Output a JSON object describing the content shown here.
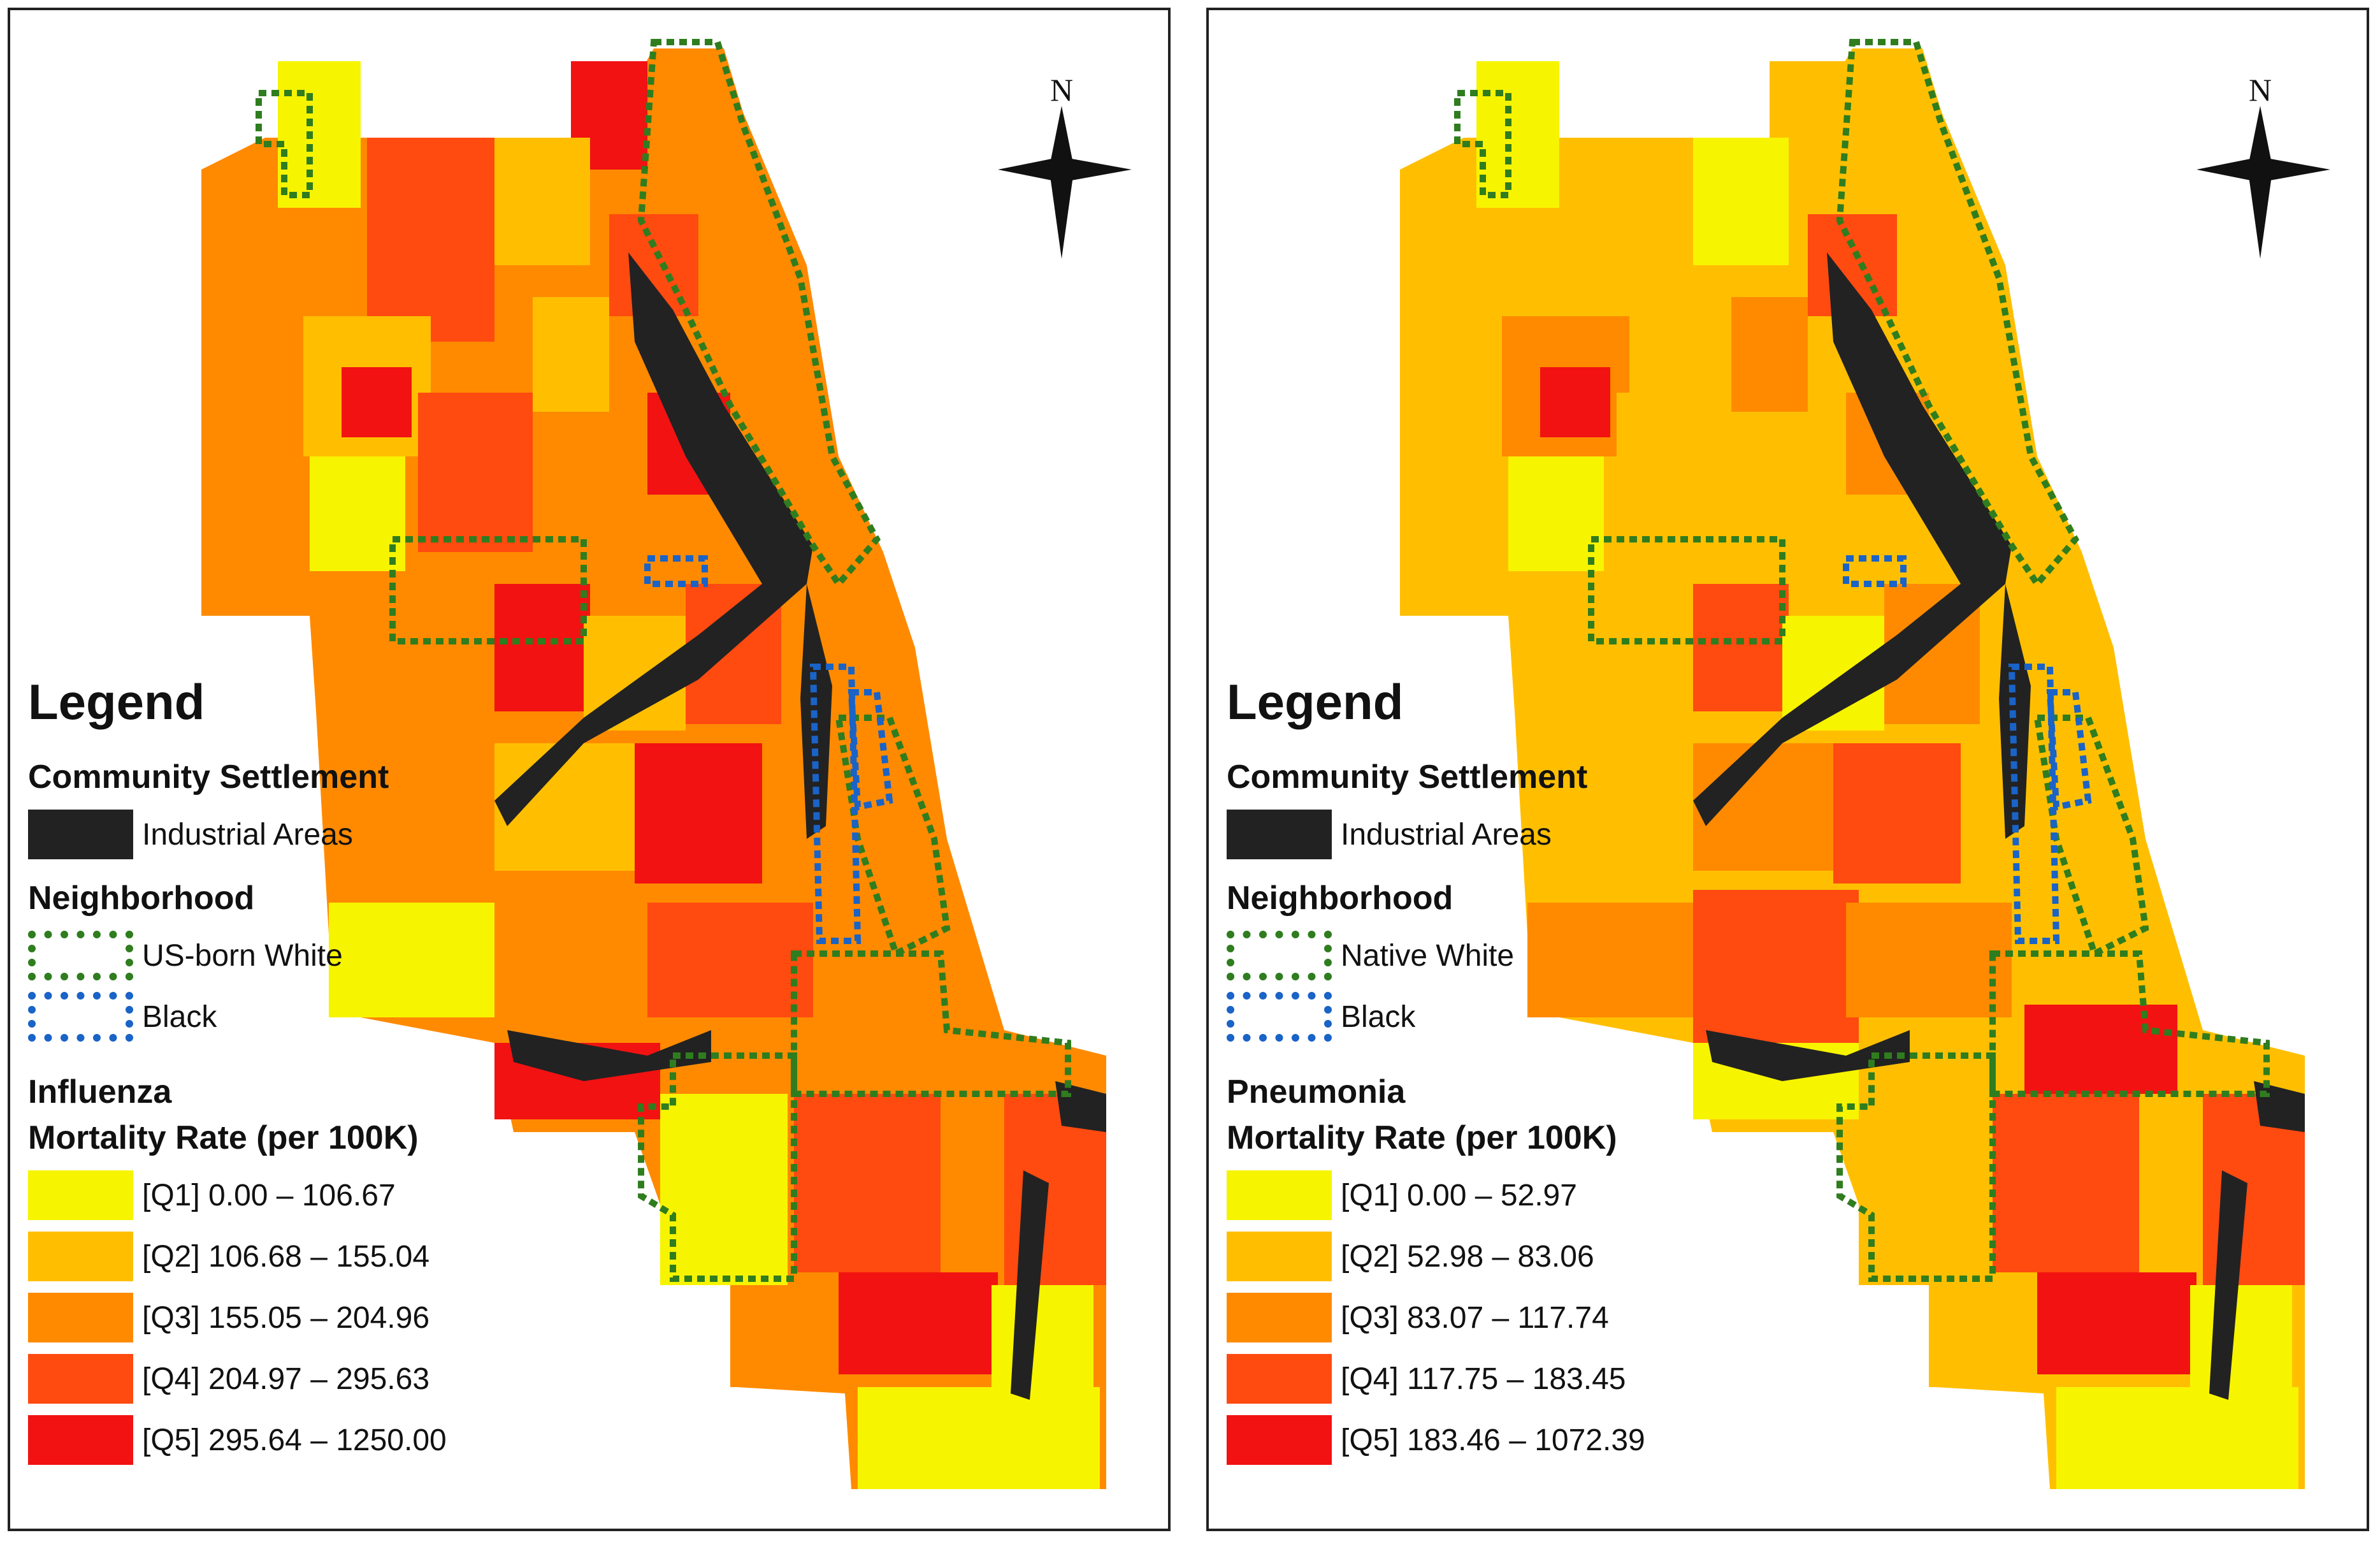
{
  "maps": [
    {
      "north": "N",
      "legend": {
        "title": "Legend",
        "community_section": "Community Settlement",
        "industrial_label": "Industrial Areas",
        "industrial_color": "#222222",
        "neighborhood_section": "Neighborhood",
        "neighborhood_white": "US-born White",
        "neighborhood_black": "Black",
        "disease": "Influenza",
        "rate_title": "Mortality Rate (per 100K)",
        "classes": [
          {
            "label": "[Q1] 0.00 – 106.67",
            "color": "#f7f400"
          },
          {
            "label": "[Q2] 106.68 – 155.04",
            "color": "#ffbf00"
          },
          {
            "label": "[Q3] 155.05 – 204.96",
            "color": "#ff8a00"
          },
          {
            "label": "[Q4] 204.97 – 295.63",
            "color": "#ff4a10"
          },
          {
            "label": "[Q5] 295.64 – 1250.00",
            "color": "#f21212"
          }
        ]
      }
    },
    {
      "north": "N",
      "legend": {
        "title": "Legend",
        "community_section": "Community Settlement",
        "industrial_label": "Industrial Areas",
        "industrial_color": "#222222",
        "neighborhood_section": "Neighborhood",
        "neighborhood_white": "Native White",
        "neighborhood_black": "Black",
        "disease": "Pneumonia",
        "rate_title": "Mortality Rate (per 100K)",
        "classes": [
          {
            "label": "[Q1] 0.00 – 52.97",
            "color": "#f7f400"
          },
          {
            "label": "[Q2] 52.98 – 83.06",
            "color": "#ffbf00"
          },
          {
            "label": "[Q3] 83.07 – 117.74",
            "color": "#ff8a00"
          },
          {
            "label": "[Q4] 117.75 – 183.45",
            "color": "#ff4a10"
          },
          {
            "label": "[Q5] 183.46 – 1072.39",
            "color": "#f21212"
          }
        ]
      }
    }
  ],
  "outline_colors": {
    "white_neighborhood": "#2f7d1f",
    "black_neighborhood": "#1a63c7"
  }
}
